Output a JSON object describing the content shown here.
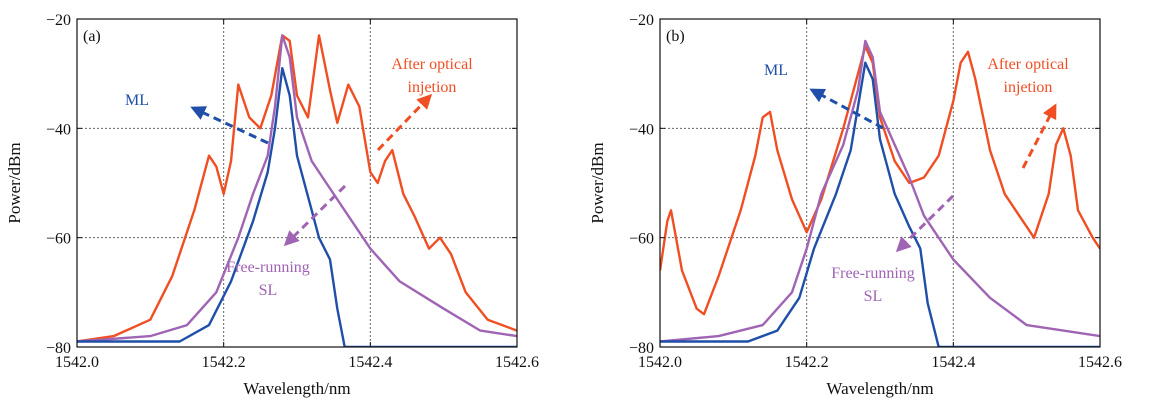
{
  "chart_data": [
    {
      "type": "line",
      "panel_label": "(a)",
      "xlabel": "Wavelength/nm",
      "ylabel": "Power/dBm",
      "xlim": [
        1542.0,
        1542.6
      ],
      "ylim": [
        -80,
        -20
      ],
      "xticks": [
        1542.0,
        1542.2,
        1542.4,
        1542.6
      ],
      "xtick_labels": [
        "1542.0",
        "1542.2",
        "1542.4",
        "1542.6"
      ],
      "yticks": [
        -80,
        -60,
        -40,
        -20
      ],
      "ytick_labels": [
        "−80",
        "−60",
        "−40",
        "−20"
      ],
      "grid": true,
      "annotations": [
        {
          "text": "ML",
          "color": "#1f4fa8"
        },
        {
          "text": "After optical",
          "color": "#f04e23"
        },
        {
          "text": "injetion",
          "color": "#f04e23"
        },
        {
          "text": "Free-running",
          "color": "#a064b4"
        },
        {
          "text": "SL",
          "color": "#a064b4"
        }
      ],
      "series": [
        {
          "color": "#f04e23",
          "points": [
            [
              1542.0,
              -79
            ],
            [
              1542.05,
              -78
            ],
            [
              1542.1,
              -75
            ],
            [
              1542.13,
              -67
            ],
            [
              1542.16,
              -55
            ],
            [
              1542.18,
              -45
            ],
            [
              1542.19,
              -47
            ],
            [
              1542.2,
              -52
            ],
            [
              1542.21,
              -46
            ],
            [
              1542.22,
              -32
            ],
            [
              1542.235,
              -38
            ],
            [
              1542.25,
              -40
            ],
            [
              1542.265,
              -34
            ],
            [
              1542.28,
              -23
            ],
            [
              1542.29,
              -24
            ],
            [
              1542.3,
              -34
            ],
            [
              1542.315,
              -38
            ],
            [
              1542.33,
              -23
            ],
            [
              1542.345,
              -33
            ],
            [
              1542.355,
              -39
            ],
            [
              1542.37,
              -32
            ],
            [
              1542.385,
              -36
            ],
            [
              1542.4,
              -48
            ],
            [
              1542.41,
              -50
            ],
            [
              1542.42,
              -46
            ],
            [
              1542.43,
              -44
            ],
            [
              1542.445,
              -52
            ],
            [
              1542.46,
              -56
            ],
            [
              1542.48,
              -62
            ],
            [
              1542.495,
              -60
            ],
            [
              1542.51,
              -63
            ],
            [
              1542.53,
              -70
            ],
            [
              1542.56,
              -75
            ],
            [
              1542.6,
              -77
            ]
          ]
        },
        {
          "color": "#a064b4",
          "points": [
            [
              1542.0,
              -79
            ],
            [
              1542.1,
              -78
            ],
            [
              1542.15,
              -76
            ],
            [
              1542.19,
              -70
            ],
            [
              1542.22,
              -60
            ],
            [
              1542.24,
              -52
            ],
            [
              1542.26,
              -45
            ],
            [
              1542.27,
              -36
            ],
            [
              1542.28,
              -23
            ],
            [
              1542.29,
              -27
            ],
            [
              1542.3,
              -38
            ],
            [
              1542.32,
              -46
            ],
            [
              1542.34,
              -50
            ],
            [
              1542.37,
              -56
            ],
            [
              1542.4,
              -62
            ],
            [
              1542.44,
              -68
            ],
            [
              1542.5,
              -73
            ],
            [
              1542.55,
              -77
            ],
            [
              1542.6,
              -78
            ]
          ]
        },
        {
          "color": "#1f4fa8",
          "points": [
            [
              1542.0,
              -79
            ],
            [
              1542.14,
              -79
            ],
            [
              1542.18,
              -76
            ],
            [
              1542.21,
              -68
            ],
            [
              1542.24,
              -57
            ],
            [
              1542.26,
              -48
            ],
            [
              1542.27,
              -40
            ],
            [
              1542.28,
              -29
            ],
            [
              1542.29,
              -34
            ],
            [
              1542.3,
              -45
            ],
            [
              1542.32,
              -55
            ],
            [
              1542.33,
              -60
            ],
            [
              1542.345,
              -64
            ],
            [
              1542.355,
              -73
            ],
            [
              1542.365,
              -80
            ],
            [
              1542.45,
              -80
            ],
            [
              1542.6,
              -80
            ]
          ]
        }
      ]
    },
    {
      "type": "line",
      "panel_label": "(b)",
      "xlabel": "Wavelength/nm",
      "ylabel": "Power/dBm",
      "xlim": [
        1542.0,
        1542.6
      ],
      "ylim": [
        -80,
        -20
      ],
      "xticks": [
        1542.0,
        1542.2,
        1542.4,
        1542.6
      ],
      "xtick_labels": [
        "1542.0",
        "1542.2",
        "1542.4",
        "1542.6"
      ],
      "yticks": [
        -80,
        -60,
        -40,
        -20
      ],
      "ytick_labels": [
        "−80",
        "−60",
        "−40",
        "−20"
      ],
      "grid": true,
      "annotations": [
        {
          "text": "ML",
          "color": "#1f4fa8"
        },
        {
          "text": "After optical",
          "color": "#f04e23"
        },
        {
          "text": "injetion",
          "color": "#f04e23"
        },
        {
          "text": "Free-running",
          "color": "#a064b4"
        },
        {
          "text": "SL",
          "color": "#a064b4"
        }
      ],
      "series": [
        {
          "color": "#f04e23",
          "points": [
            [
              1542.0,
              -66
            ],
            [
              1542.01,
              -57
            ],
            [
              1542.015,
              -55
            ],
            [
              1542.03,
              -66
            ],
            [
              1542.05,
              -73
            ],
            [
              1542.06,
              -74
            ],
            [
              1542.08,
              -67
            ],
            [
              1542.11,
              -55
            ],
            [
              1542.13,
              -45
            ],
            [
              1542.14,
              -38
            ],
            [
              1542.15,
              -37
            ],
            [
              1542.16,
              -44
            ],
            [
              1542.18,
              -53
            ],
            [
              1542.2,
              -59
            ],
            [
              1542.22,
              -53
            ],
            [
              1542.25,
              -40
            ],
            [
              1542.27,
              -30
            ],
            [
              1542.28,
              -25
            ],
            [
              1542.29,
              -28
            ],
            [
              1542.3,
              -38
            ],
            [
              1542.32,
              -46
            ],
            [
              1542.34,
              -50
            ],
            [
              1542.36,
              -49
            ],
            [
              1542.38,
              -45
            ],
            [
              1542.4,
              -35
            ],
            [
              1542.41,
              -28
            ],
            [
              1542.42,
              -26
            ],
            [
              1542.43,
              -31
            ],
            [
              1542.45,
              -44
            ],
            [
              1542.47,
              -52
            ],
            [
              1542.49,
              -56
            ],
            [
              1542.5,
              -58
            ],
            [
              1542.51,
              -60
            ],
            [
              1542.53,
              -52
            ],
            [
              1542.54,
              -43
            ],
            [
              1542.55,
              -40
            ],
            [
              1542.56,
              -45
            ],
            [
              1542.57,
              -55
            ],
            [
              1542.59,
              -60
            ],
            [
              1542.6,
              -62
            ]
          ]
        },
        {
          "color": "#a064b4",
          "points": [
            [
              1542.0,
              -79
            ],
            [
              1542.08,
              -78
            ],
            [
              1542.14,
              -76
            ],
            [
              1542.18,
              -70
            ],
            [
              1542.2,
              -62
            ],
            [
              1542.22,
              -52
            ],
            [
              1542.25,
              -43
            ],
            [
              1542.27,
              -33
            ],
            [
              1542.28,
              -24
            ],
            [
              1542.29,
              -27
            ],
            [
              1542.3,
              -37
            ],
            [
              1542.32,
              -43
            ],
            [
              1542.34,
              -49
            ],
            [
              1542.36,
              -56
            ],
            [
              1542.4,
              -64
            ],
            [
              1542.45,
              -71
            ],
            [
              1542.5,
              -76
            ],
            [
              1542.6,
              -78
            ]
          ]
        },
        {
          "color": "#1f4fa8",
          "points": [
            [
              1542.0,
              -79
            ],
            [
              1542.12,
              -79
            ],
            [
              1542.16,
              -77
            ],
            [
              1542.19,
              -71
            ],
            [
              1542.21,
              -62
            ],
            [
              1542.24,
              -52
            ],
            [
              1542.26,
              -44
            ],
            [
              1542.27,
              -36
            ],
            [
              1542.28,
              -28
            ],
            [
              1542.29,
              -31
            ],
            [
              1542.3,
              -42
            ],
            [
              1542.32,
              -52
            ],
            [
              1542.34,
              -58
            ],
            [
              1542.355,
              -62
            ],
            [
              1542.365,
              -72
            ],
            [
              1542.38,
              -80
            ],
            [
              1542.45,
              -80
            ],
            [
              1542.6,
              -80
            ]
          ]
        }
      ]
    }
  ]
}
